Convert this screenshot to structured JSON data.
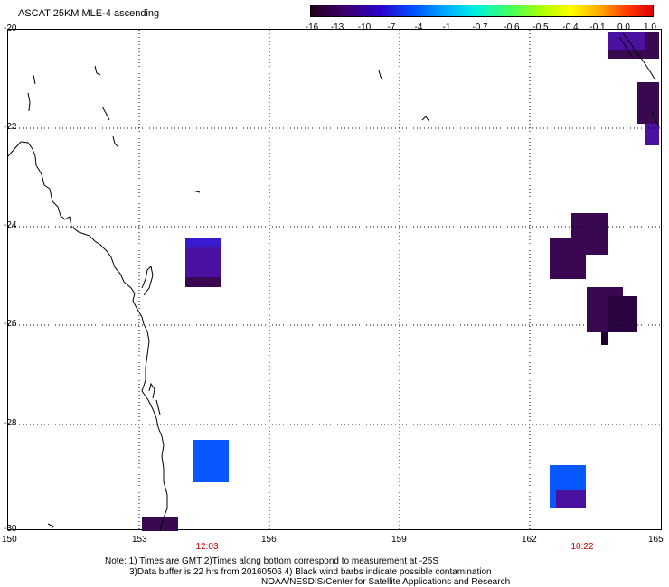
{
  "title": "ASCAT 25KM MLE-4 ascending",
  "colorbar": {
    "labels": [
      "-16",
      "-13",
      "-10",
      "-7",
      "-4",
      "-1",
      "-0.7",
      "-0.6",
      "-0.5",
      "-0.4",
      "-0.1",
      "0.0",
      "1.0"
    ],
    "colors": {
      "low": "#24001a",
      "mid": "#00f0e0",
      "high": "#e00000"
    }
  },
  "map": {
    "lat_labels": [
      "-20",
      "-22",
      "-24",
      "-26",
      "-28",
      "-30"
    ],
    "lon_labels": [
      "150",
      "153",
      "156",
      "159",
      "162",
      "165"
    ],
    "times": [
      "12:03",
      "10:22"
    ],
    "cell_colors": {
      "dark_purple": "#3a0850",
      "purple": "#4a10a0",
      "blue": "#0858ff"
    },
    "grid": true
  },
  "notes": {
    "line1": "Note: 1) Times are GMT 2)Times along bottom correspond to measurement at -25S",
    "line2": "3)Data buffer is 22 hrs from 20160506 4) Black wind barbs indicate possible contamination",
    "line3": "NOAA/NESDIS/Center for Satellite Applications and Research"
  }
}
